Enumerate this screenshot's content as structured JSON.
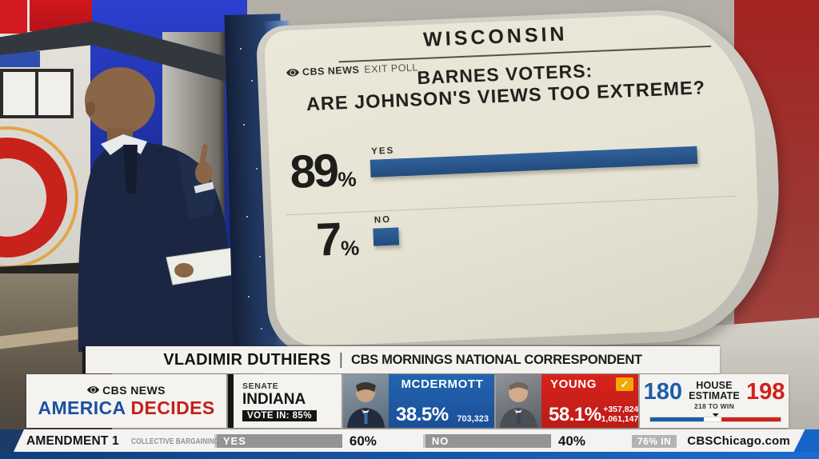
{
  "screen": {
    "network": "CBS NEWS",
    "poll_type": "EXIT POLL",
    "state": "WISCONSIN",
    "question_line1": "BARNES VOTERS:",
    "question_line2": "ARE JOHNSON'S VIEWS TOO EXTREME?",
    "bars": [
      {
        "num": "89",
        "suffix": "%",
        "label": "YES",
        "value": 89
      },
      {
        "num": "7",
        "suffix": "%",
        "label": "NO",
        "value": 7
      }
    ]
  },
  "chart_data": [
    {
      "type": "bar",
      "orientation": "horizontal",
      "title": "BARNES VOTERS: ARE JOHNSON'S VIEWS TOO EXTREME?",
      "subtitle": "CBS NEWS EXIT POLL — WISCONSIN",
      "categories": [
        "YES",
        "NO"
      ],
      "values": [
        89,
        7
      ],
      "unit": "%",
      "xlim": [
        0,
        100
      ],
      "bar_color": "#2b5a94",
      "grid": false,
      "legend": false
    },
    {
      "type": "bar",
      "title": "SENATE — INDIANA",
      "note": "VOTE IN: 85%",
      "series": [
        {
          "name": "MCDERMOTT",
          "pct": 38.5,
          "votes": 703323,
          "winner": false,
          "color": "#1d5cab"
        },
        {
          "name": "YOUNG",
          "pct": 58.1,
          "votes": 1061147,
          "margin": 357824,
          "winner": true,
          "color": "#d0211c"
        }
      ]
    },
    {
      "type": "bar",
      "title": "HOUSE ESTIMATE",
      "note": "218 TO WIN",
      "needed_seats": 218,
      "total_seats": 435,
      "series": [
        {
          "name": "DEM",
          "seats": 180,
          "color": "#1d5cab"
        },
        {
          "name": "REP",
          "seats": 198,
          "color": "#d0211c"
        }
      ]
    },
    {
      "type": "bar",
      "title": "AMENDMENT 1 — COLLECTIVE BARGAINING",
      "note": "76% IN",
      "categories": [
        "YES",
        "NO"
      ],
      "values": [
        60,
        40
      ],
      "unit": "%"
    }
  ],
  "name_banner": {
    "name": "VLADIMIR DUTHIERS",
    "divider": "|",
    "role": "CBS MORNINGS NATIONAL CORRESPONDENT"
  },
  "results_bar": {
    "logo": {
      "network": "CBS NEWS",
      "word1": "AMERICA",
      "word2": "DECIDES"
    },
    "race": {
      "chamber": "SENATE",
      "state": "INDIANA",
      "vote_in": "VOTE IN: 85%"
    },
    "candidates": [
      {
        "name": "MCDERMOTT",
        "pct": "38.5%",
        "votes": "703,323"
      },
      {
        "name": "YOUNG",
        "pct": "58.1%",
        "margin": "+357,824",
        "votes": "1,061,147"
      }
    ],
    "house": {
      "dem": "180",
      "title_line1": "HOUSE",
      "title_line2": "ESTIMATE",
      "needed": "218 TO WIN",
      "rep": "198"
    }
  },
  "ticker": {
    "race_title": "AMENDMENT 1",
    "race_subtitle": "COLLECTIVE BARGAINING",
    "options": [
      {
        "label": "YES",
        "pct": "60%"
      },
      {
        "label": "NO",
        "pct": "40%"
      }
    ],
    "reporting": "76% IN",
    "station": "CBSChicago.com"
  },
  "icons": {
    "winner_check": "✓"
  },
  "colors": {
    "poll_bar_blue": "#2b5a94",
    "dem_blue": "#1d5cab",
    "rep_red": "#d0211c",
    "america_blue": "#1b4fa0",
    "decides_red": "#c42018",
    "winner_check_bg": "#f2a900",
    "ticker_chip_gray": "#949494"
  }
}
